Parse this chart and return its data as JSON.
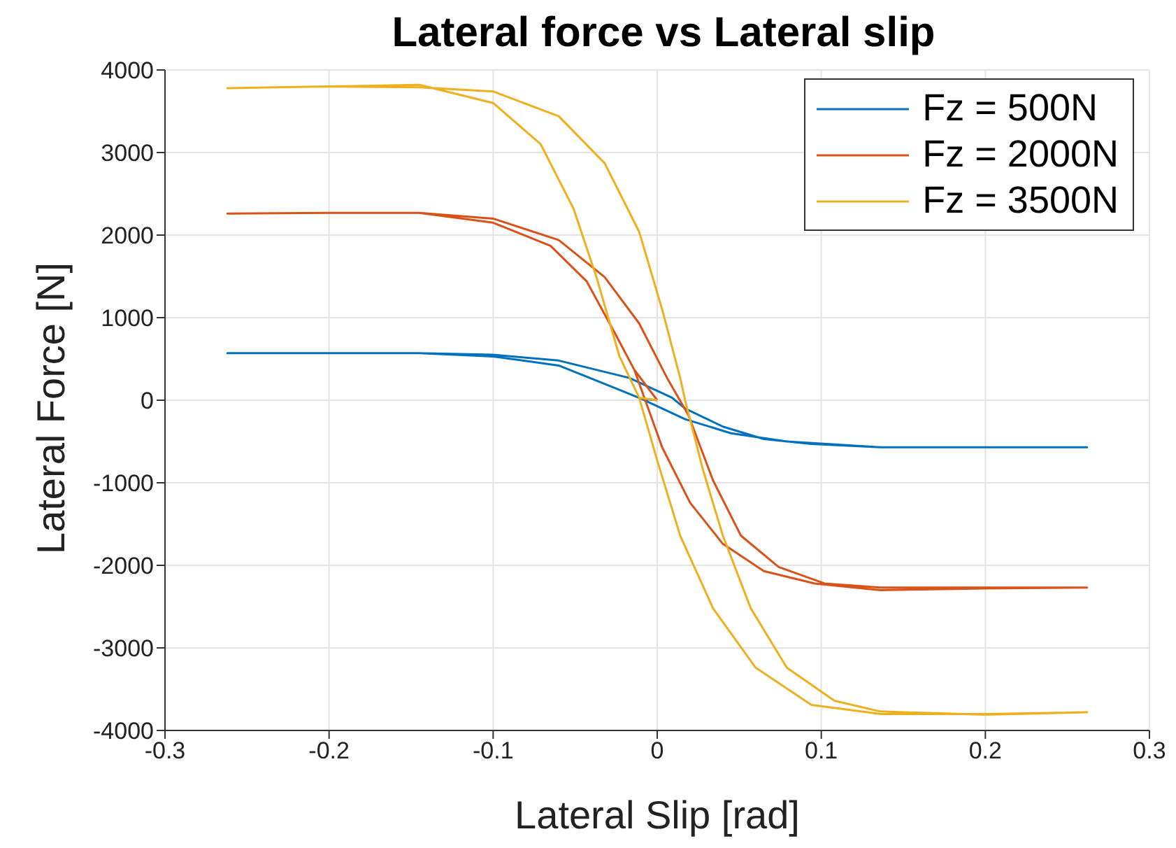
{
  "chart_data": {
    "type": "line",
    "title": "Lateral force vs Lateral slip",
    "xlabel": "Lateral Slip [rad]",
    "ylabel": "Lateral Force [N]",
    "xlim": [
      -0.3,
      0.3
    ],
    "xticks": [
      -0.3,
      -0.2,
      -0.1,
      0,
      0.1,
      0.2,
      0.3
    ],
    "ylim": [
      -4000,
      4000
    ],
    "yticks": [
      -4000,
      -3000,
      -2000,
      -1000,
      0,
      1000,
      2000,
      3000,
      4000
    ],
    "grid": true,
    "legend": "top right",
    "marker": "none",
    "line_style": "solid",
    "series": [
      {
        "name": "Fz = 500N",
        "color": "#0072bd",
        "x": [
          0,
          -0.01,
          -0.026,
          -0.06,
          -0.1,
          -0.145,
          -0.262,
          -0.145,
          -0.1,
          -0.06,
          -0.017,
          0.009,
          0.017,
          0.04,
          0.065,
          0.094,
          0.136,
          0.262,
          0.136,
          0.079,
          0.045,
          0.017,
          -0.01,
          -0.026,
          -0.06,
          -0.1,
          -0.145,
          -0.262
        ],
        "values": [
          0,
          20,
          150,
          420,
          530,
          570,
          570,
          570,
          550,
          480,
          270,
          30,
          -100,
          -320,
          -470,
          -530,
          -570,
          -570,
          -570,
          -500,
          -400,
          -230,
          20,
          150,
          420,
          530,
          570,
          570
        ]
      },
      {
        "name": "Fz = 2000N",
        "color": "#d95319",
        "x": [
          0,
          -0.014,
          -0.026,
          -0.043,
          -0.065,
          -0.1,
          -0.145,
          -0.2,
          -0.262,
          -0.2,
          -0.145,
          -0.1,
          -0.06,
          -0.032,
          -0.011,
          0.006,
          0.019,
          0.034,
          0.051,
          0.074,
          0.102,
          0.136,
          0.2,
          0.262,
          0.2,
          0.136,
          0.096,
          0.065,
          0.04,
          0.02,
          0.003,
          -0.014,
          -0.026,
          -0.043,
          -0.065,
          -0.1,
          -0.145,
          -0.2,
          -0.262
        ],
        "values": [
          0,
          370,
          820,
          1440,
          1870,
          2150,
          2270,
          2270,
          2260,
          2270,
          2270,
          2200,
          1940,
          1490,
          930,
          270,
          -180,
          -970,
          -1640,
          -2020,
          -2220,
          -2270,
          -2270,
          -2270,
          -2280,
          -2300,
          -2220,
          -2070,
          -1740,
          -1240,
          -570,
          370,
          820,
          1440,
          1870,
          2150,
          2270,
          2270,
          2260
        ]
      },
      {
        "name": "Fz = 3500N",
        "color": "#edb120",
        "x": [
          0,
          -0.011,
          -0.023,
          -0.037,
          -0.051,
          -0.071,
          -0.1,
          -0.145,
          -0.2,
          -0.262,
          -0.2,
          -0.145,
          -0.1,
          -0.06,
          -0.032,
          -0.011,
          0.003,
          0.014,
          0.017,
          0.028,
          0.04,
          0.057,
          0.079,
          0.108,
          0.136,
          0.2,
          0.262,
          0.2,
          0.136,
          0.094,
          0.06,
          0.034,
          0.014,
          0,
          -0.011,
          -0.023,
          -0.037,
          -0.051,
          -0.071,
          -0.1,
          -0.145,
          -0.2,
          -0.262
        ],
        "values": [
          0,
          30,
          530,
          1490,
          2320,
          3100,
          3600,
          3820,
          3800,
          3780,
          3800,
          3790,
          3740,
          3440,
          2870,
          2040,
          1100,
          270,
          0,
          -850,
          -1640,
          -2520,
          -3240,
          -3640,
          -3770,
          -3810,
          -3780,
          -3800,
          -3800,
          -3690,
          -3240,
          -2520,
          -1640,
          -730,
          30,
          530,
          1490,
          2320,
          3100,
          3600,
          3820,
          3800,
          3780
        ]
      }
    ]
  }
}
